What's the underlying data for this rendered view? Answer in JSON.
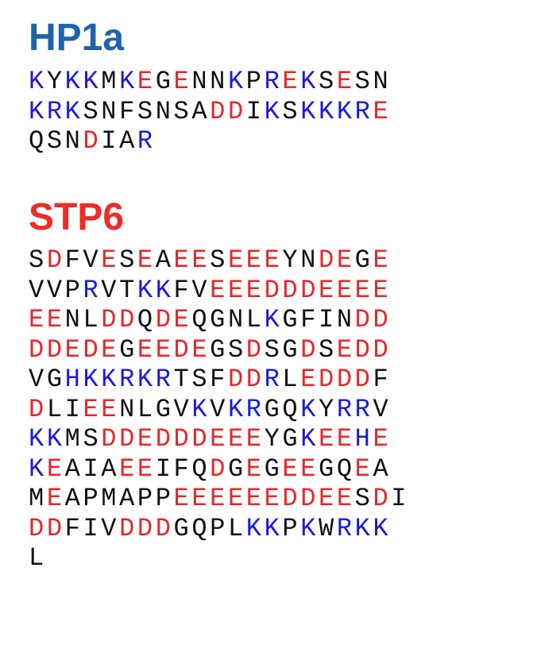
{
  "colors": {
    "basic": "#1a1adb",
    "acidic": "#e8262a",
    "neutral": "#111111",
    "hp1a_title": "#1f63ad",
    "stp6_title": "#f02a25"
  },
  "sections": [
    {
      "title": "HP1a",
      "lines": [
        "KYKKMKEGENNKPREKSESN",
        "KRKSNFSNSADDIKSKKKRE",
        "QSNDIAR"
      ]
    },
    {
      "title": "STP6",
      "lines": [
        "SDFVESEAEESEEEYNDEGE",
        "VVPRVTKKFVEEEDDDEEEE",
        "EENLDDQDEQGNLKGFINDD",
        "DDEDEGEEDEGSDSGDSEDD",
        "VGHKKRKRTSFDDRLEDDDF",
        "DLIEENLGVKVKRGQKYRRV",
        "KKMSDDEDDDEEEYGKEEHE",
        "KEAIAEEIFQDGEGEEGQEA",
        "MEAPMAPPEEEEEEDDEESDI",
        "DDFIVDDDGQPLKKPKWRKK",
        "L"
      ]
    }
  ]
}
